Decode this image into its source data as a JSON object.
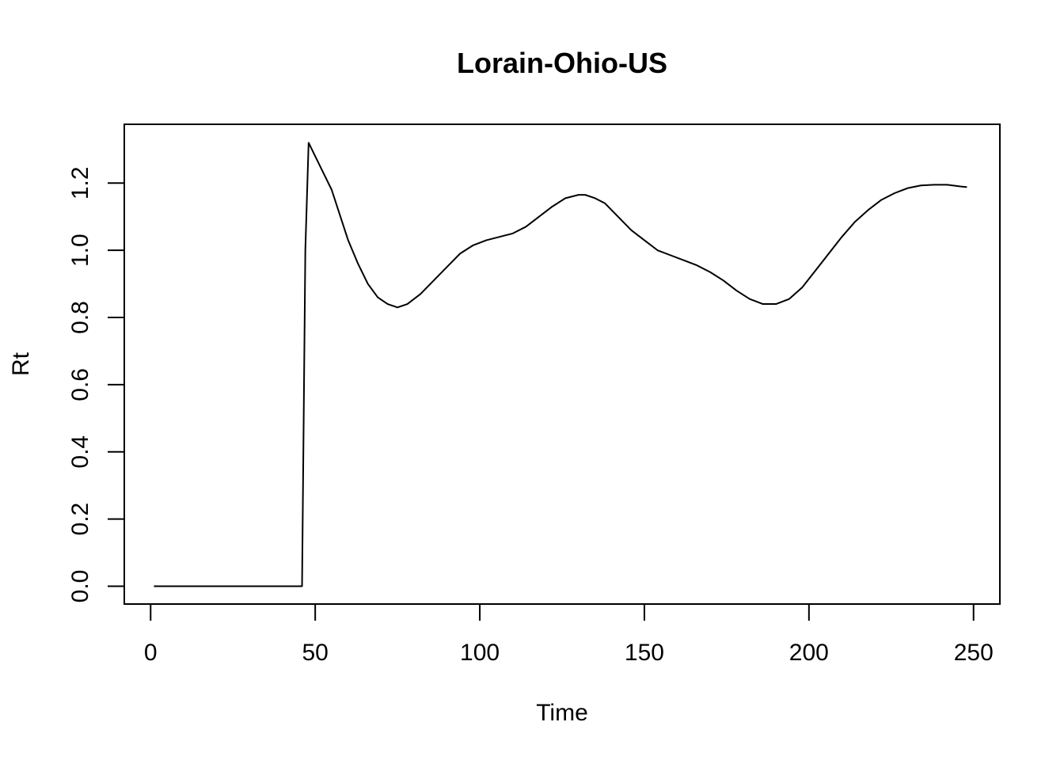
{
  "chart_data": {
    "type": "line",
    "title": "Lorain-Ohio-US",
    "xlabel": "Time",
    "ylabel": "Rt",
    "xlim": [
      -8,
      258
    ],
    "ylim": [
      -0.053,
      1.375
    ],
    "x_ticks": [
      0,
      50,
      100,
      150,
      200,
      250
    ],
    "y_ticks": [
      0.0,
      0.2,
      0.4,
      0.6,
      0.8,
      1.0,
      1.2
    ],
    "x_tick_labels": [
      "0",
      "50",
      "100",
      "150",
      "200",
      "250"
    ],
    "y_tick_labels": [
      "0.0",
      "0.2",
      "0.4",
      "0.6",
      "0.8",
      "1.0",
      "1.2"
    ],
    "grid": false,
    "legend": "none",
    "line_color": "#000000",
    "series": [
      {
        "x": [
          1,
          46,
          46.5,
          47,
          48,
          50,
          52,
          55,
          58,
          60,
          63,
          66,
          69,
          72,
          75,
          78,
          82,
          86,
          90,
          94,
          98,
          102,
          106,
          110,
          114,
          118,
          122,
          126,
          130,
          132,
          135,
          138,
          142,
          146,
          150,
          154,
          158,
          162,
          166,
          170,
          174,
          178,
          182,
          186,
          190,
          194,
          198,
          202,
          206,
          210,
          214,
          218,
          222,
          226,
          230,
          234,
          238,
          242,
          246,
          248
        ],
        "y": [
          0.0,
          0.0,
          0.5,
          1.0,
          1.32,
          1.28,
          1.24,
          1.18,
          1.09,
          1.03,
          0.96,
          0.9,
          0.86,
          0.84,
          0.83,
          0.84,
          0.87,
          0.91,
          0.95,
          0.99,
          1.015,
          1.03,
          1.04,
          1.05,
          1.07,
          1.1,
          1.13,
          1.155,
          1.165,
          1.165,
          1.155,
          1.14,
          1.1,
          1.06,
          1.03,
          1.0,
          0.985,
          0.97,
          0.955,
          0.935,
          0.91,
          0.88,
          0.855,
          0.84,
          0.84,
          0.855,
          0.89,
          0.94,
          0.99,
          1.04,
          1.085,
          1.12,
          1.15,
          1.17,
          1.185,
          1.193,
          1.195,
          1.195,
          1.19,
          1.188
        ]
      }
    ]
  }
}
